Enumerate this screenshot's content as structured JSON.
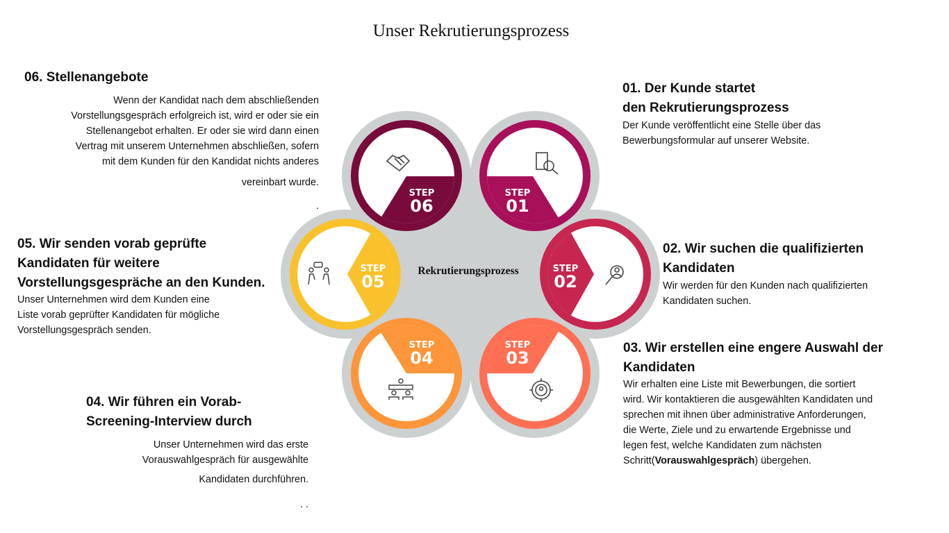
{
  "title": "Unser Rekrutierungsprozess",
  "center_label": "Rekrutierungsprozess",
  "step_word": "STEP",
  "steps": [
    {
      "num": "01",
      "color": "#a8105a",
      "icon": "document-search-icon",
      "heading": [
        "01. Der Kunde startet",
        "den Rekrutierungsprozess"
      ],
      "body": [
        "Der Kunde  veröffentlicht eine Stelle über das",
        "Bewerbungsformular auf unserer Website."
      ]
    },
    {
      "num": "02",
      "color": "#c6264f",
      "icon": "candidate-search-icon",
      "heading": [
        "02. Wir suchen die qualifizierten",
        "Kandidaten"
      ],
      "body": [
        "Wir werden  für den Kunden nach qualifizierten",
        "Kandidaten suchen."
      ]
    },
    {
      "num": "03",
      "color": "#fe6f53",
      "icon": "target-person-icon",
      "heading": [
        "03. Wir erstellen eine engere Auswahl der",
        "Kandidaten"
      ],
      "body": [
        "Wir erhalten eine Liste mit Bewerbungen, die sortiert",
        "wird. Wir kontaktieren die ausgewählten Kandidaten und",
        "sprechen mit ihnen über administrative Anforderungen,",
        "die Werte, Ziele und zu erwartende  Ergebnisse und",
        "legen fest, welche Kandidaten zum nächsten"
      ],
      "body_last_prefix": "Schritt(",
      "body_last_bold": "Vorauswahlgespräch",
      "body_last_suffix": ") übergehen."
    },
    {
      "num": "04",
      "color": "#fd953a",
      "icon": "meeting-table-icon",
      "heading": [
        "04. Wir führen ein Vorab-",
        "Screening-Interview durch"
      ],
      "body": [
        "Unser Unternehmen wird das erste",
        "Vorauswahlgespräch für ausgewählte",
        "Kandidaten durchführen."
      ],
      "trailing": ". ."
    },
    {
      "num": "05",
      "color": "#f9c12c",
      "icon": "interview-chat-icon",
      "heading": [
        "05. Wir senden vorab geprüfte",
        "Kandidaten für weitere",
        "Vorstellungsgespräche an den Kunden."
      ],
      "body": [
        "Unser Unternehmen wird  dem Kunden eine",
        "Liste vorab geprüfter Kandidaten für mögliche",
        "Vorstellungsgespräch senden."
      ]
    },
    {
      "num": "06",
      "color": "#780a3c",
      "icon": "handshake-icon",
      "heading": [
        "06. Stellenangebote"
      ],
      "body": [
        "Wenn der Kandidat nach dem abschließenden",
        "Vorstellungsgespräch erfolgreich ist, wird er oder sie  ein",
        "Stellenangebot erhalten. Er oder sie wird dann einen",
        "Vertrag mit unserem Unternehmen abschließen, sofern",
        "mit dem Kunden für den Kandidat nichts anderes",
        "vereinbart wurde."
      ],
      "trailing": "."
    }
  ],
  "halo_color": "#cdd0d1"
}
